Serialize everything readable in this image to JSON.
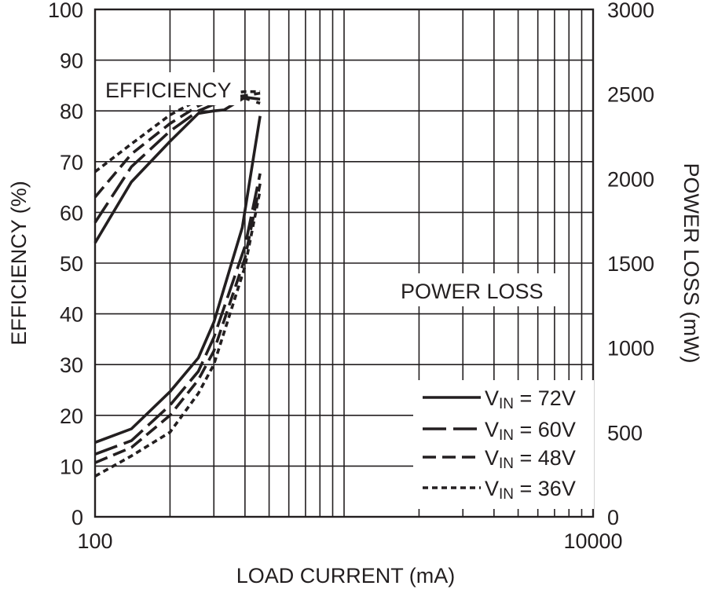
{
  "chart_data": {
    "type": "line",
    "title": "",
    "xlabel": "LOAD CURRENT (mA)",
    "ylabel": "EFFICIENCY (%)",
    "y2label": "POWER LOSS (mW)",
    "xscale": "log",
    "xlim": [
      100,
      10000
    ],
    "ylim": [
      0,
      100
    ],
    "y2lim": [
      0,
      3000
    ],
    "x_ticks": [
      "100",
      "10000"
    ],
    "y_ticks": [
      "0",
      "10",
      "20",
      "30",
      "40",
      "50",
      "60",
      "70",
      "80",
      "90",
      "100"
    ],
    "y2_ticks": [
      "0",
      "500",
      "1000",
      "1500",
      "2000",
      "2500",
      "3000"
    ],
    "grid": true,
    "legend_position": "bottom-right",
    "annotations": {
      "efficiency": "EFFICIENCY",
      "power_loss": "POWER LOSS"
    },
    "legend": [
      {
        "prefix": "V",
        "sub": "IN",
        "suffix": " = 72V",
        "dash": "solid"
      },
      {
        "prefix": "V",
        "sub": "IN",
        "suffix": " = 60V",
        "dash": "longdash"
      },
      {
        "prefix": "V",
        "sub": "IN",
        "suffix": " = 48V",
        "dash": "dash"
      },
      {
        "prefix": "V",
        "sub": "IN",
        "suffix": " = 36V",
        "dash": "dot"
      }
    ],
    "series": [
      {
        "vin": "72V",
        "metric": "efficiency",
        "axis": "left",
        "dash": "solid",
        "x": [
          100,
          140,
          200,
          260,
          300,
          330,
          400,
          460
        ],
        "y": [
          54,
          66,
          74,
          79.5,
          80,
          80.2,
          82.7,
          82.3
        ]
      },
      {
        "vin": "60V",
        "metric": "efficiency",
        "axis": "left",
        "dash": "longdash",
        "x": [
          100,
          140,
          200,
          260,
          300,
          400,
          460
        ],
        "y": [
          58,
          69,
          76,
          80,
          81.3,
          82.5,
          81.5
        ]
      },
      {
        "vin": "48V",
        "metric": "efficiency",
        "axis": "left",
        "dash": "dash",
        "x": [
          100,
          140,
          200,
          260,
          300,
          400,
          460
        ],
        "y": [
          63,
          71.5,
          77.5,
          81,
          82.3,
          83,
          83.5
        ]
      },
      {
        "vin": "36V",
        "metric": "efficiency",
        "axis": "left",
        "dash": "dot",
        "x": [
          100,
          140,
          200,
          260,
          300,
          400,
          460
        ],
        "y": [
          68,
          73.5,
          79.2,
          82.2,
          83.2,
          83.8,
          83.8
        ]
      },
      {
        "vin": "72V",
        "metric": "power_loss",
        "axis": "right",
        "dash": "solid",
        "x": [
          100,
          140,
          200,
          260,
          300,
          390,
          460
        ],
        "y": [
          440,
          520,
          740,
          940,
          1150,
          1710,
          2370
        ]
      },
      {
        "vin": "60V",
        "metric": "power_loss",
        "axis": "right",
        "dash": "longdash",
        "x": [
          100,
          140,
          200,
          260,
          300,
          400,
          460
        ],
        "y": [
          370,
          450,
          660,
          860,
          1060,
          1600,
          2030
        ]
      },
      {
        "vin": "48V",
        "metric": "power_loss",
        "axis": "right",
        "dash": "dash",
        "x": [
          100,
          140,
          200,
          260,
          300,
          400,
          460
        ],
        "y": [
          320,
          410,
          600,
          810,
          980,
          1530,
          1970
        ]
      },
      {
        "vin": "36V",
        "metric": "power_loss",
        "axis": "right",
        "dash": "dot",
        "x": [
          100,
          140,
          200,
          260,
          300,
          400,
          460
        ],
        "y": [
          240,
          360,
          500,
          730,
          900,
          1480,
          1930
        ]
      }
    ]
  }
}
